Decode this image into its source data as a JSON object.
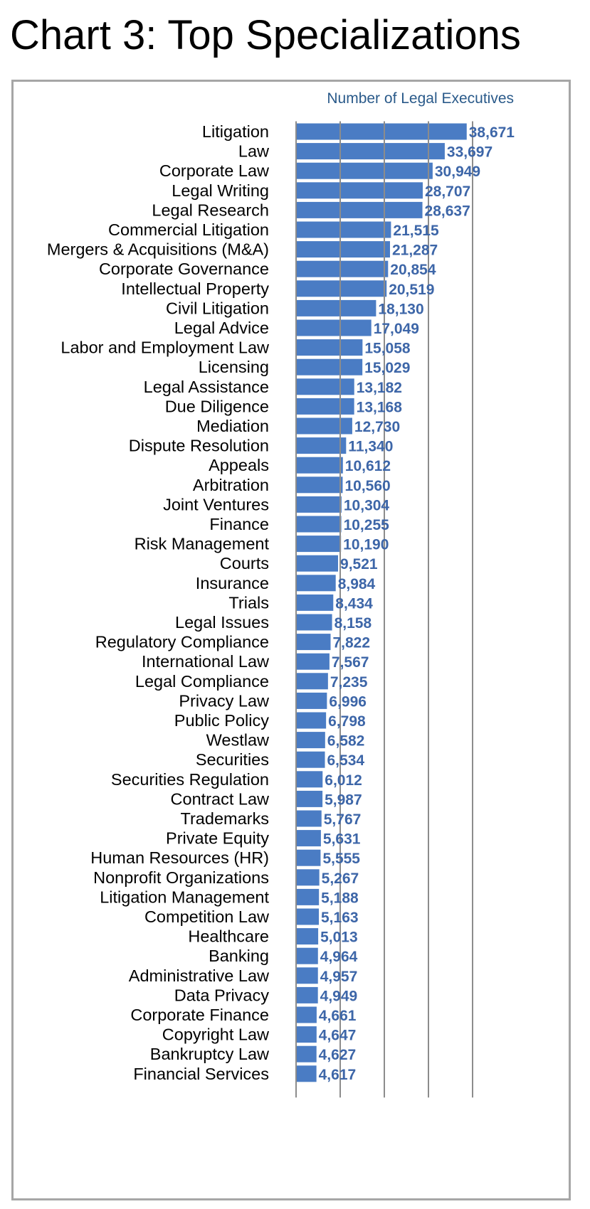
{
  "title": "Chart 3: Top Specializations",
  "colors": {
    "bar": "#4a7cc4",
    "value_label": "#3d66a8",
    "legend_text": "#2a5a8a",
    "grid": "#8c8c8c",
    "frame": "#a6a6a6",
    "category_label": "#000000"
  },
  "chart_data": {
    "type": "bar",
    "orientation": "horizontal",
    "legend": "Number of Legal Executives",
    "legend_position": "top-right",
    "grid": true,
    "xlim": [
      0,
      40000
    ],
    "grid_values": [
      10000,
      20000,
      30000,
      40000
    ],
    "categories": [
      "Litigation",
      "Law",
      "Corporate Law",
      "Legal Writing",
      "Legal Research",
      "Commercial Litigation",
      "Mergers & Acquisitions (M&A)",
      "Corporate Governance",
      "Intellectual Property",
      "Civil Litigation",
      "Legal Advice",
      "Labor and Employment Law",
      "Licensing",
      "Legal Assistance",
      "Due Diligence",
      "Mediation",
      "Dispute Resolution",
      "Appeals",
      "Arbitration",
      "Joint Ventures",
      "Finance",
      "Risk Management",
      "Courts",
      "Insurance",
      "Trials",
      "Legal Issues",
      "Regulatory Compliance",
      "International Law",
      "Legal Compliance",
      "Privacy Law",
      "Public Policy",
      "Westlaw",
      "Securities",
      "Securities Regulation",
      "Contract Law",
      "Trademarks",
      "Private Equity",
      "Human Resources (HR)",
      "Nonprofit Organizations",
      "Litigation Management",
      "Competition Law",
      "Healthcare",
      "Banking",
      "Administrative Law",
      "Data Privacy",
      "Corporate Finance",
      "Copyright Law",
      "Bankruptcy Law",
      "Financial Services"
    ],
    "values": [
      38671,
      33697,
      30949,
      28707,
      28637,
      21515,
      21287,
      20854,
      20519,
      18130,
      17049,
      15058,
      15029,
      13182,
      13168,
      12730,
      11340,
      10612,
      10560,
      10304,
      10255,
      10190,
      9521,
      8984,
      8434,
      8158,
      7822,
      7567,
      7235,
      6996,
      6798,
      6582,
      6534,
      6012,
      5987,
      5767,
      5631,
      5555,
      5267,
      5188,
      5163,
      5013,
      4964,
      4957,
      4949,
      4661,
      4647,
      4627,
      4617
    ],
    "value_labels": [
      "38,671",
      "33,697",
      "30,949",
      "28,707",
      "28,637",
      "21,515",
      "21,287",
      "20,854",
      "20,519",
      "18,130",
      "17,049",
      "15,058",
      "15,029",
      "13,182",
      "13,168",
      "12,730",
      "11,340",
      "10,612",
      "10,560",
      "10,304",
      "10,255",
      "10,190",
      "9,521",
      "8,984",
      "8,434",
      "8,158",
      "7,822",
      "7,567",
      "7,235",
      "6,996",
      "6,798",
      "6,582",
      "6,534",
      "6,012",
      "5,987",
      "5,767",
      "5,631",
      "5,555",
      "5,267",
      "5,188",
      "5,163",
      "5,013",
      "4,964",
      "4,957",
      "4,949",
      "4,661",
      "4,647",
      "4,627",
      "4,617"
    ]
  }
}
